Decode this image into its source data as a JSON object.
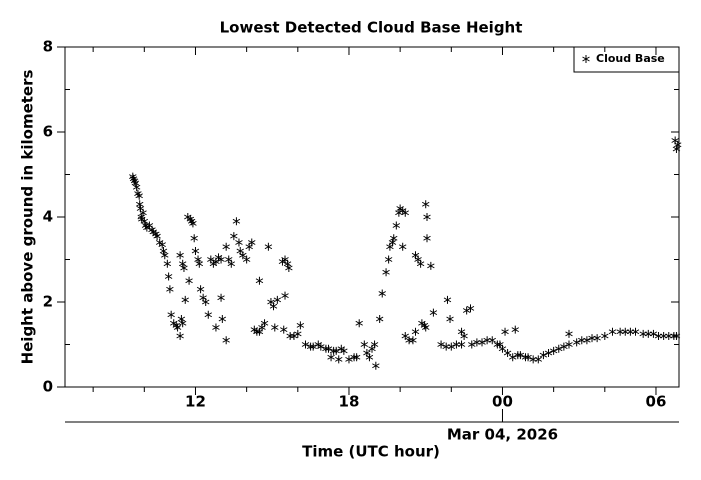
{
  "chart_data": {
    "type": "scatter",
    "title": "Lowest Detected Cloud Base Height",
    "x_label": "Time (UTC hour)",
    "y_label": "Height above ground in kilometers",
    "annotations": [
      {
        "x": 24,
        "text": "Mar 04, 2026"
      }
    ],
    "xlim": [
      6.9,
      30.9
    ],
    "xticks": [
      12,
      18,
      {
        "value": 24,
        "label": "00"
      },
      {
        "value": 30,
        "label": "06"
      }
    ],
    "xminorticks": [
      8,
      10,
      14,
      16,
      20,
      22,
      26,
      28
    ],
    "ylim": [
      0,
      8
    ],
    "yticks": [
      0,
      2,
      4,
      6,
      8
    ],
    "yminorticks": [
      1,
      3,
      5,
      7
    ],
    "legend": "upper right",
    "marker": "asterisk",
    "series": [
      {
        "name": "Cloud Base",
        "color": "#000000",
        "x": [
          9.55,
          9.58,
          9.62,
          9.65,
          9.7,
          9.75,
          9.8,
          9.82,
          9.85,
          9.88,
          9.9,
          9.95,
          10.0,
          10.05,
          10.1,
          10.2,
          10.3,
          10.35,
          10.45,
          10.5,
          10.6,
          10.7,
          10.75,
          10.8,
          10.9,
          10.95,
          11.0,
          11.05,
          11.15,
          11.25,
          11.3,
          11.4,
          11.45,
          11.5,
          11.4,
          11.5,
          11.55,
          11.6,
          11.7,
          11.75,
          11.8,
          11.85,
          11.9,
          11.95,
          12.0,
          12.1,
          12.15,
          12.2,
          12.3,
          12.4,
          12.5,
          12.6,
          12.7,
          12.8,
          12.9,
          13.0,
          12.8,
          13.0,
          13.05,
          13.2,
          13.2,
          13.3,
          13.4,
          13.5,
          13.6,
          13.7,
          13.75,
          13.85,
          14.0,
          14.1,
          14.2,
          14.5,
          14.3,
          14.4,
          14.5,
          14.6,
          14.7,
          14.85,
          14.95,
          15.05,
          15.2,
          15.4,
          15.5,
          15.6,
          15.65,
          15.5,
          15.1,
          15.45,
          15.7,
          15.85,
          16.0,
          16.1,
          16.3,
          16.5,
          16.6,
          16.8,
          16.9,
          17.1,
          17.2,
          17.4,
          17.5,
          17.7,
          17.8,
          17.3,
          17.6,
          18.0,
          18.2,
          18.3,
          18.4,
          18.6,
          18.7,
          18.8,
          18.9,
          19.0,
          19.05,
          19.2,
          19.3,
          19.45,
          19.55,
          19.6,
          19.7,
          19.75,
          19.85,
          19.95,
          20.0,
          20.1,
          20.2,
          20.1,
          20.2,
          20.35,
          20.5,
          20.6,
          20.6,
          20.7,
          20.8,
          20.85,
          20.95,
          21.0,
          21.0,
          21.05,
          21.05,
          21.2,
          21.3,
          21.6,
          21.8,
          22.0,
          22.2,
          22.4,
          21.85,
          21.95,
          22.4,
          22.5,
          22.6,
          22.75,
          22.8,
          23.0,
          23.2,
          23.4,
          23.6,
          23.8,
          23.9,
          24.0,
          24.2,
          24.4,
          24.6,
          24.1,
          24.5,
          24.7,
          24.9,
          25.0,
          25.2,
          25.4,
          25.6,
          25.8,
          26.0,
          26.2,
          26.4,
          26.6,
          26.6,
          26.9,
          27.1,
          27.3,
          27.5,
          27.7,
          28.0,
          28.3,
          28.6,
          28.8,
          29.0,
          29.2,
          29.5,
          29.7,
          29.9,
          30.1,
          30.3,
          30.5,
          30.7,
          30.8,
          30.75,
          30.8,
          30.85
        ],
        "values": [
          4.95,
          4.9,
          4.85,
          4.8,
          4.7,
          4.55,
          4.5,
          4.3,
          4.2,
          4.0,
          3.95,
          4.1,
          3.9,
          3.8,
          3.75,
          3.8,
          3.7,
          3.65,
          3.6,
          3.55,
          3.4,
          3.35,
          3.2,
          3.1,
          2.9,
          2.6,
          2.3,
          1.7,
          1.5,
          1.45,
          1.4,
          1.2,
          1.6,
          1.5,
          3.1,
          2.9,
          2.8,
          2.05,
          4.0,
          2.5,
          3.95,
          3.9,
          3.85,
          3.5,
          3.2,
          3.0,
          2.9,
          2.3,
          2.1,
          2.0,
          1.7,
          3.0,
          2.9,
          2.95,
          3.05,
          3.0,
          1.4,
          2.1,
          1.6,
          1.1,
          3.3,
          3.0,
          2.9,
          3.55,
          3.9,
          3.4,
          3.2,
          3.1,
          3.0,
          3.3,
          3.4,
          2.5,
          1.35,
          1.3,
          1.3,
          1.4,
          1.5,
          3.3,
          2.0,
          1.9,
          2.05,
          2.95,
          3.0,
          2.9,
          2.8,
          2.15,
          1.4,
          1.35,
          1.2,
          1.2,
          1.25,
          1.45,
          1.0,
          0.95,
          0.95,
          1.0,
          0.95,
          0.9,
          0.9,
          0.85,
          0.85,
          0.9,
          0.85,
          0.7,
          0.65,
          0.65,
          0.7,
          0.7,
          1.5,
          1.0,
          0.8,
          0.7,
          0.9,
          1.0,
          0.5,
          1.6,
          2.2,
          2.7,
          3.0,
          3.3,
          3.4,
          3.5,
          3.8,
          4.1,
          4.2,
          4.15,
          4.1,
          3.3,
          1.2,
          1.1,
          1.1,
          1.3,
          3.1,
          3.0,
          2.9,
          1.5,
          1.45,
          1.4,
          4.3,
          4.0,
          3.5,
          2.85,
          1.75,
          1.0,
          0.95,
          0.95,
          1.0,
          1.0,
          2.05,
          1.6,
          1.3,
          1.2,
          1.8,
          1.85,
          1.0,
          1.05,
          1.05,
          1.1,
          1.1,
          1.0,
          1.0,
          0.9,
          0.8,
          0.7,
          0.75,
          1.3,
          1.35,
          0.75,
          0.7,
          0.7,
          0.65,
          0.65,
          0.75,
          0.8,
          0.85,
          0.9,
          0.95,
          1.0,
          1.25,
          1.05,
          1.1,
          1.1,
          1.15,
          1.15,
          1.2,
          1.3,
          1.3,
          1.3,
          1.3,
          1.3,
          1.25,
          1.25,
          1.25,
          1.2,
          1.2,
          1.2,
          1.2,
          1.2,
          5.8,
          5.6,
          5.7
        ]
      }
    ]
  }
}
